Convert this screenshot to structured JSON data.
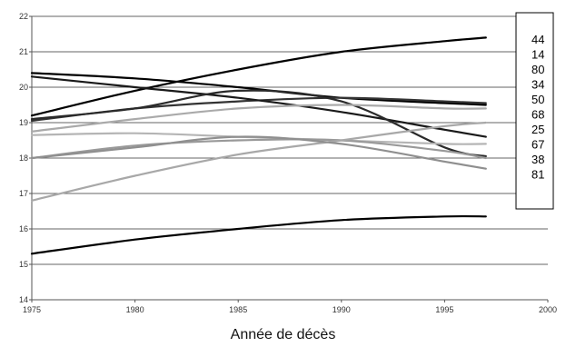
{
  "chart_data": {
    "type": "line",
    "title": "",
    "xlabel": "Année de décès",
    "ylabel": "",
    "xlim": [
      1975,
      2000
    ],
    "ylim": [
      14,
      22
    ],
    "x_ticks": [
      1975,
      1980,
      1985,
      1990,
      1995,
      2000
    ],
    "y_ticks": [
      14,
      15,
      16,
      17,
      18,
      19,
      20,
      21,
      22
    ],
    "grid": "horizontal",
    "legend_position": "right",
    "legend_entries": [
      "44",
      "14",
      "80",
      "34",
      "50",
      "68",
      "25",
      "67",
      "38",
      "81"
    ],
    "x": [
      1975,
      1980,
      1985,
      1990,
      1995,
      1997
    ],
    "series": [
      {
        "name": "",
        "color": "#000000",
        "values": [
          19.2,
          19.9,
          20.5,
          21.0,
          21.3,
          21.4
        ]
      },
      {
        "name": "",
        "color": "#000000",
        "values": [
          20.4,
          20.25,
          20.0,
          19.7,
          19.55,
          19.5
        ]
      },
      {
        "name": "",
        "color": "#333333",
        "values": [
          19.05,
          19.4,
          19.6,
          19.7,
          19.6,
          19.55
        ]
      },
      {
        "name": "",
        "color": "#1a1a1a",
        "values": [
          20.3,
          20.0,
          19.7,
          19.3,
          18.8,
          18.6
        ]
      },
      {
        "name": "",
        "color": "#2a2a2a",
        "values": [
          19.1,
          19.4,
          19.9,
          19.6,
          18.3,
          18.05
        ]
      },
      {
        "name": "",
        "color": "#aaaaaa",
        "values": [
          18.75,
          19.1,
          19.4,
          19.5,
          19.4,
          19.4
        ]
      },
      {
        "name": "",
        "color": "#b5b5b5",
        "values": [
          18.65,
          18.7,
          18.6,
          18.5,
          18.4,
          18.4
        ]
      },
      {
        "name": "",
        "color": "#999999",
        "values": [
          18.0,
          18.35,
          18.5,
          18.5,
          18.2,
          18.0
        ]
      },
      {
        "name": "",
        "color": "#a8a8a8",
        "values": [
          16.8,
          17.5,
          18.1,
          18.5,
          18.9,
          19.0
        ]
      },
      {
        "name": "",
        "color": "#8f8f8f",
        "values": [
          18.0,
          18.3,
          18.6,
          18.4,
          17.9,
          17.7
        ]
      },
      {
        "name": "",
        "color": "#000000",
        "values": [
          15.3,
          15.7,
          16.0,
          16.25,
          16.35,
          16.35
        ]
      }
    ]
  }
}
